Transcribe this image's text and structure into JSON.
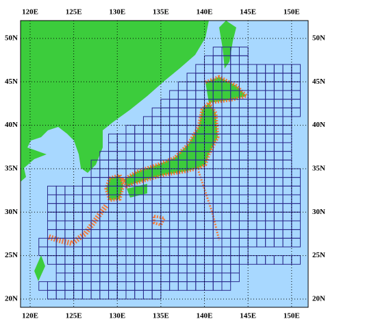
{
  "map": {
    "xlim": [
      118.9,
      151.9
    ],
    "ylim": [
      19.05,
      52.05
    ],
    "lon_ticks": [
      {
        "value": 120,
        "label": "120E"
      },
      {
        "value": 125,
        "label": "125E"
      },
      {
        "value": 130,
        "label": "130E"
      },
      {
        "value": 135,
        "label": "135E"
      },
      {
        "value": 140,
        "label": "140E"
      },
      {
        "value": 145,
        "label": "145E"
      },
      {
        "value": 150,
        "label": "150E"
      }
    ],
    "lat_ticks": [
      {
        "value": 20,
        "label": "20N"
      },
      {
        "value": 25,
        "label": "25N"
      },
      {
        "value": 30,
        "label": "30N"
      },
      {
        "value": 35,
        "label": "35N"
      },
      {
        "value": 40,
        "label": "40N"
      },
      {
        "value": 45,
        "label": "45N"
      },
      {
        "value": 50,
        "label": "50N"
      }
    ]
  }
}
